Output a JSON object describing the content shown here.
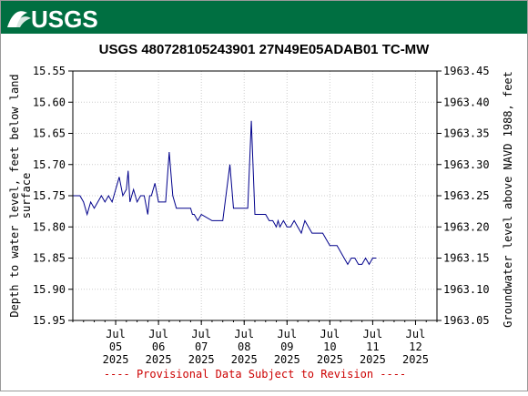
{
  "header": {
    "logo_text": "USGS",
    "brand_color": "#006f41"
  },
  "chart_data": {
    "type": "line",
    "title": "USGS 480728105243901 27N49E05ADAB01 TC-MW",
    "left_ylabel": "Depth to water level, feet below land surface",
    "right_ylabel": "Groundwater level above NAVD 1988, feet",
    "left_ylim": [
      15.55,
      15.95
    ],
    "left_axis_inverted": true,
    "right_ylim": [
      1963.05,
      1963.45
    ],
    "xlim": [
      "2025-07-04",
      "2025-07-12T12:00"
    ],
    "left_ticks": [
      "15.55",
      "15.60",
      "15.65",
      "15.70",
      "15.75",
      "15.80",
      "15.85",
      "15.90",
      "15.95"
    ],
    "right_ticks": [
      "1963.45",
      "1963.40",
      "1963.35",
      "1963.30",
      "1963.25",
      "1963.20",
      "1963.15",
      "1963.10",
      "1963.05"
    ],
    "x_ticks": [
      {
        "date": "2025-07-05",
        "month": "Jul",
        "day": "05",
        "year": "2025"
      },
      {
        "date": "2025-07-06",
        "month": "Jul",
        "day": "06",
        "year": "2025"
      },
      {
        "date": "2025-07-07",
        "month": "Jul",
        "day": "07",
        "year": "2025"
      },
      {
        "date": "2025-07-08",
        "month": "Jul",
        "day": "08",
        "year": "2025"
      },
      {
        "date": "2025-07-09",
        "month": "Jul",
        "day": "09",
        "year": "2025"
      },
      {
        "date": "2025-07-10",
        "month": "Jul",
        "day": "10",
        "year": "2025"
      },
      {
        "date": "2025-07-11",
        "month": "Jul",
        "day": "11",
        "year": "2025"
      },
      {
        "date": "2025-07-12",
        "month": "Jul",
        "day": "12",
        "year": "2025"
      }
    ],
    "grid": true,
    "line_color": "#00008b",
    "series": [
      {
        "x": [
          "2025-07-04T00:00",
          "2025-07-04T04:00",
          "2025-07-04T06:00",
          "2025-07-04T08:00",
          "2025-07-04T10:00",
          "2025-07-04T12:00",
          "2025-07-04T14:00",
          "2025-07-04T16:00",
          "2025-07-04T18:00",
          "2025-07-04T20:00",
          "2025-07-04T22:00",
          "2025-07-05T00:00",
          "2025-07-05T02:00",
          "2025-07-05T04:00",
          "2025-07-05T06:00",
          "2025-07-05T07:00",
          "2025-07-05T08:00",
          "2025-07-05T10:00",
          "2025-07-05T12:00",
          "2025-07-05T14:00",
          "2025-07-05T16:00",
          "2025-07-05T18:00",
          "2025-07-05T19:00",
          "2025-07-05T20:00",
          "2025-07-05T22:00",
          "2025-07-06T00:00",
          "2025-07-06T02:00",
          "2025-07-06T04:00",
          "2025-07-06T06:00",
          "2025-07-06T08:00",
          "2025-07-06T10:00",
          "2025-07-06T12:00",
          "2025-07-06T14:00",
          "2025-07-06T16:00",
          "2025-07-06T18:00",
          "2025-07-06T19:00",
          "2025-07-06T20:00",
          "2025-07-06T22:00",
          "2025-07-07T00:00",
          "2025-07-07T06:00",
          "2025-07-07T12:00",
          "2025-07-07T16:00",
          "2025-07-07T18:00",
          "2025-07-07T20:00",
          "2025-07-07T22:00",
          "2025-07-08T00:00",
          "2025-07-08T02:00",
          "2025-07-08T04:00",
          "2025-07-08T06:00",
          "2025-07-08T08:00",
          "2025-07-08T10:00",
          "2025-07-08T12:00",
          "2025-07-08T14:00",
          "2025-07-08T16:00",
          "2025-07-08T18:00",
          "2025-07-08T19:00",
          "2025-07-08T20:00",
          "2025-07-08T22:00",
          "2025-07-09T00:00",
          "2025-07-09T02:00",
          "2025-07-09T04:00",
          "2025-07-09T06:00",
          "2025-07-09T08:00",
          "2025-07-09T10:00",
          "2025-07-09T12:00",
          "2025-07-09T14:00",
          "2025-07-09T16:00",
          "2025-07-09T18:00",
          "2025-07-09T20:00",
          "2025-07-09T22:00",
          "2025-07-10T00:00",
          "2025-07-10T02:00",
          "2025-07-10T04:00",
          "2025-07-10T06:00",
          "2025-07-10T08:00",
          "2025-07-10T10:00",
          "2025-07-10T12:00",
          "2025-07-10T14:00",
          "2025-07-10T16:00",
          "2025-07-10T18:00",
          "2025-07-10T20:00",
          "2025-07-10T22:00",
          "2025-07-11T00:00",
          "2025-07-11T02:00"
        ],
        "y": [
          15.75,
          15.75,
          15.76,
          15.78,
          15.76,
          15.77,
          15.76,
          15.75,
          15.76,
          15.75,
          15.76,
          15.74,
          15.72,
          15.75,
          15.74,
          15.71,
          15.76,
          15.74,
          15.76,
          15.75,
          15.75,
          15.78,
          15.75,
          15.75,
          15.73,
          15.76,
          15.76,
          15.76,
          15.68,
          15.75,
          15.77,
          15.77,
          15.77,
          15.77,
          15.77,
          15.78,
          15.78,
          15.79,
          15.78,
          15.79,
          15.79,
          15.7,
          15.77,
          15.77,
          15.77,
          15.77,
          15.77,
          15.63,
          15.78,
          15.78,
          15.78,
          15.78,
          15.79,
          15.79,
          15.8,
          15.79,
          15.8,
          15.79,
          15.8,
          15.8,
          15.79,
          15.8,
          15.81,
          15.79,
          15.8,
          15.81,
          15.81,
          15.81,
          15.81,
          15.82,
          15.83,
          15.83,
          15.83,
          15.84,
          15.85,
          15.86,
          15.85,
          15.85,
          15.86,
          15.86,
          15.85,
          15.86,
          15.85,
          15.85
        ]
      }
    ],
    "footer_note": "---- Provisional Data Subject to Revision ----",
    "footer_color": "#cc0000"
  }
}
